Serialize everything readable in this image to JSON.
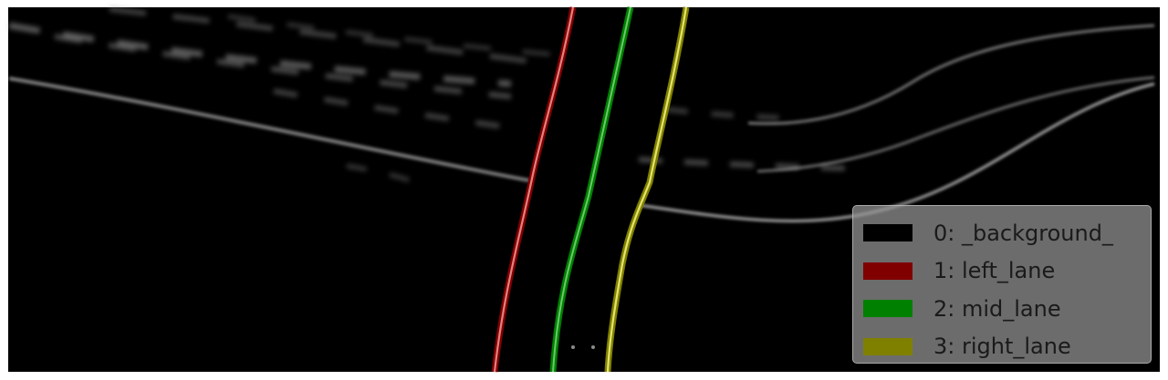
{
  "legend": {
    "entries": [
      {
        "label": "0: _background_",
        "color": "#000000"
      },
      {
        "label": "1: left_lane",
        "color": "#800000"
      },
      {
        "label": "2: mid_lane",
        "color": "#008000"
      },
      {
        "label": "3: right_lane",
        "color": "#808000"
      }
    ]
  },
  "colors": {
    "frame": "#ffffff",
    "background": "#000000",
    "road_markings": "#bdbdbd",
    "left_lane_highlight": "#ee8e8e",
    "mid_lane_highlight": "#7cd67c",
    "right_lane_highlight": "#eeee7a"
  }
}
